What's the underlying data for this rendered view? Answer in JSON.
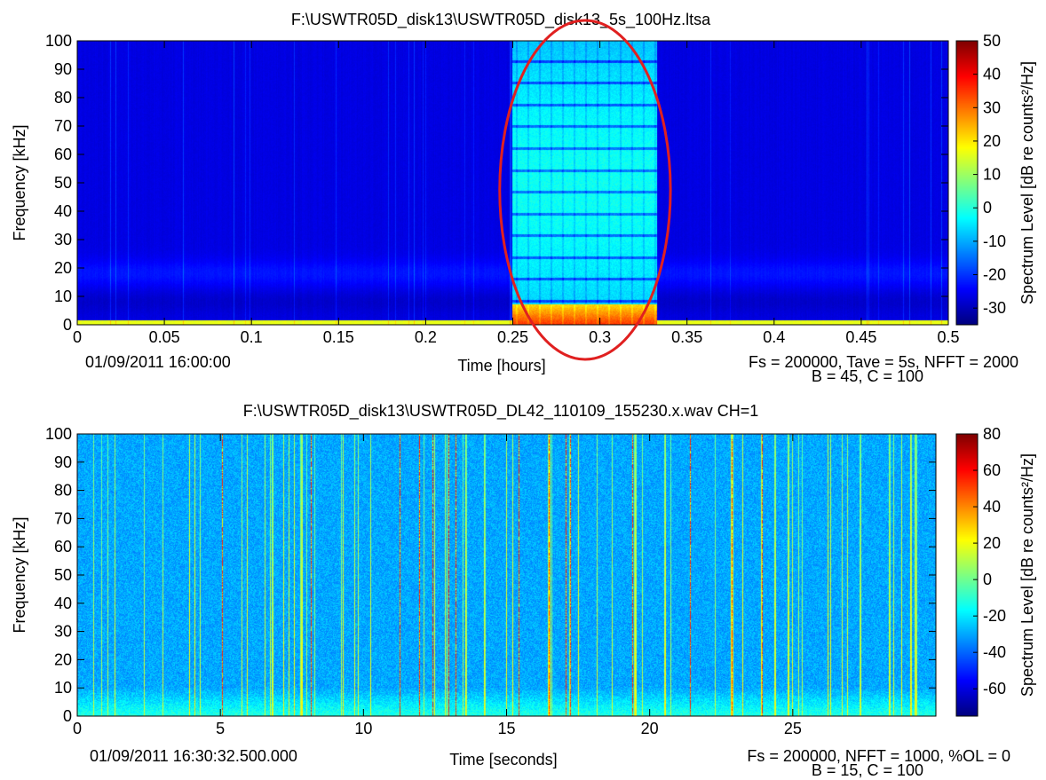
{
  "chart_data": [
    {
      "type": "heatmap",
      "title": "F:\\USWTR05D_disk13\\USWTR05D_disk13_5s_100Hz.ltsa",
      "xlabel": "Time [hours]",
      "ylabel": "Frequency [kHz]",
      "x_ticks": [
        "0",
        "0.05",
        "0.1",
        "0.15",
        "0.2",
        "0.25",
        "0.3",
        "0.35",
        "0.4",
        "0.45",
        "0.5"
      ],
      "x_tick_values": [
        0,
        0.05,
        0.1,
        0.15,
        0.2,
        0.25,
        0.3,
        0.35,
        0.4,
        0.45,
        0.5
      ],
      "xlim": [
        0,
        0.5
      ],
      "y_ticks": [
        "0",
        "10",
        "20",
        "30",
        "40",
        "50",
        "60",
        "70",
        "80",
        "90",
        "100"
      ],
      "y_tick_values": [
        0,
        10,
        20,
        30,
        40,
        50,
        60,
        70,
        80,
        90,
        100
      ],
      "ylim": [
        0,
        100
      ],
      "start_label": "01/09/2011 16:00:00",
      "params_line1": "Fs = 200000, Tave = 5s, NFFT = 2000",
      "params_line2": "B = 45, C = 100",
      "colorbar_label": "Spectrum Level [dB re counts²/Hz]",
      "colorbar_ticks": [
        "50",
        "40",
        "30",
        "20",
        "10",
        "0",
        "-10",
        "-20",
        "-30"
      ],
      "colorbar_tick_values": [
        50,
        40,
        30,
        20,
        10,
        0,
        -10,
        -20,
        -30
      ],
      "colorbar_range": [
        -35,
        50
      ],
      "highlight": {
        "shape": "ellipse",
        "color": "#e02020",
        "x_range": [
          0.243,
          0.34
        ]
      },
      "active_segment": [
        0.25,
        0.333
      ],
      "levels": {
        "background": -28,
        "low_band": -20,
        "base_line": 15,
        "active": -8,
        "active_low": 35
      }
    },
    {
      "type": "heatmap",
      "title": "F:\\USWTR05D_disk13\\USWTR05D_DL42_110109_155230.x.wav CH=1",
      "xlabel": "Time [seconds]",
      "ylabel": "Frequency [kHz]",
      "x_ticks": [
        "0",
        "5",
        "10",
        "15",
        "20",
        "25"
      ],
      "x_tick_values": [
        0,
        5,
        10,
        15,
        20,
        25
      ],
      "xlim": [
        0,
        30
      ],
      "y_ticks": [
        "0",
        "10",
        "20",
        "30",
        "40",
        "50",
        "60",
        "70",
        "80",
        "90",
        "100"
      ],
      "y_tick_values": [
        0,
        10,
        20,
        30,
        40,
        50,
        60,
        70,
        80,
        90,
        100
      ],
      "ylim": [
        0,
        100
      ],
      "start_label": "01/09/2011 16:30:32.500.000",
      "params_line1": "Fs = 200000, NFFT = 1000, %OL = 0",
      "params_line2": "B = 15, C = 100",
      "colorbar_label": "Spectrum Level [dB re counts²/Hz]",
      "colorbar_ticks": [
        "80",
        "60",
        "40",
        "20",
        "0",
        "-20",
        "-40",
        "-60"
      ],
      "colorbar_tick_values": [
        80,
        60,
        40,
        20,
        0,
        -20,
        -40,
        -60
      ],
      "colorbar_range": [
        -75,
        80
      ],
      "levels": {
        "background": -30,
        "click": 20
      }
    }
  ]
}
